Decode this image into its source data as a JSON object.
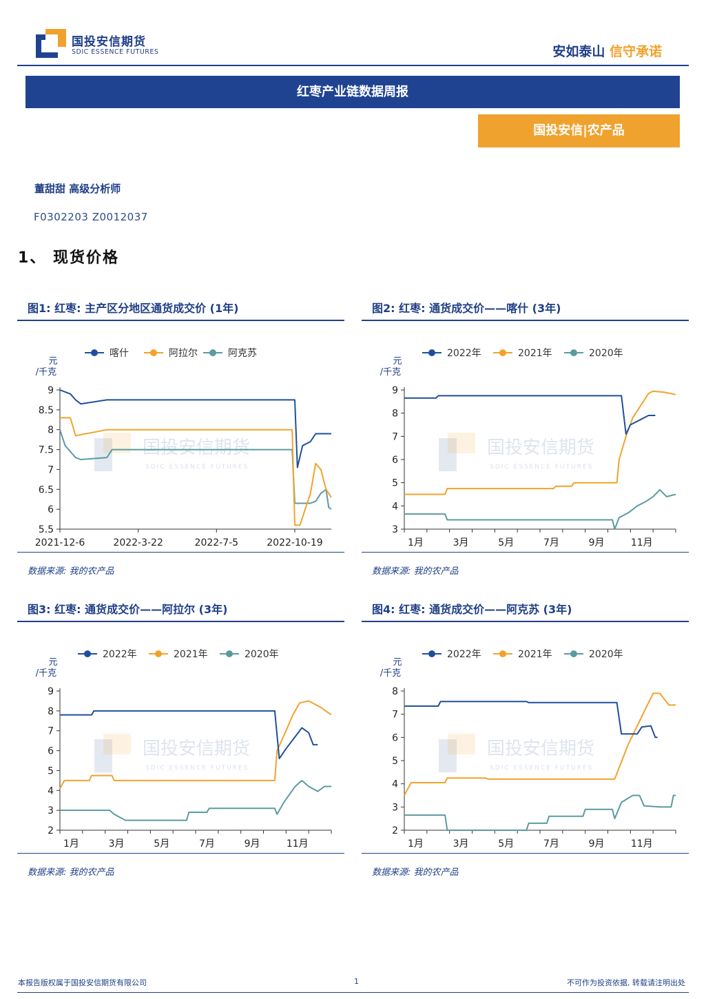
{
  "header": {
    "logo_cn": "国投安信期货",
    "logo_en": "SDIC ESSENCE FUTURES",
    "slogan_blue": "安如泰山",
    "slogan_orange": "信守承诺",
    "report_title": "红枣产业链数据周报",
    "category": "国投安信|农产品"
  },
  "analyst": {
    "name_title": "董甜甜  高级分析师",
    "codes": "F0302203  Z0012037"
  },
  "section": "1、 现货价格",
  "colors": {
    "brand_blue": "#1f3f86",
    "orange": "#f0a22e",
    "series_blue": "#1f4e9c",
    "series_orange": "#f2a22a",
    "series_teal": "#5a9aa0"
  },
  "watermark": {
    "cn": "国投安信期货",
    "en": "SDIC ESSENCE FUTURES"
  },
  "figures": [
    {
      "title": "图1: 红枣: 主产区分地区通货成交价 (1年)",
      "source": "数据来源: 我的农产品",
      "chart_data": {
        "type": "line",
        "ylabel": "元/千克",
        "ylim": [
          5.5,
          9
        ],
        "yticks": [
          "9",
          "8.5",
          "8",
          "7.5",
          "7",
          "6.5",
          "6",
          "5.5"
        ],
        "ytick_values": [
          9,
          8.5,
          8,
          7.5,
          7,
          6.5,
          6,
          5.5
        ],
        "xlim": [
          0,
          52
        ],
        "xticks": [
          {
            "x": 0,
            "label": "2021-12-6"
          },
          {
            "x": 15,
            "label": "2022-3-22"
          },
          {
            "x": 30,
            "label": "2022-7-5"
          },
          {
            "x": 45,
            "label": "2022-10-19"
          }
        ],
        "series": [
          {
            "name": "喀什",
            "color": "#1f4e9c",
            "points": [
              [
                0,
                9.0
              ],
              [
                2,
                8.9
              ],
              [
                3,
                8.75
              ],
              [
                4,
                8.65
              ],
              [
                9,
                8.75
              ],
              [
                45,
                8.75
              ],
              [
                45.5,
                7.05
              ],
              [
                46.5,
                7.6
              ],
              [
                48,
                7.7
              ],
              [
                49,
                7.9
              ],
              [
                52,
                7.9
              ]
            ]
          },
          {
            "name": "阿拉尔",
            "color": "#f2a22a",
            "points": [
              [
                0,
                8.3
              ],
              [
                2,
                8.3
              ],
              [
                3,
                7.85
              ],
              [
                9,
                8.0
              ],
              [
                44.5,
                8.0
              ],
              [
                45,
                5.6
              ],
              [
                46,
                5.6
              ],
              [
                47,
                6.0
              ],
              [
                48,
                6.4
              ],
              [
                49,
                7.15
              ],
              [
                50,
                7.0
              ],
              [
                51,
                6.5
              ],
              [
                52,
                6.3
              ]
            ]
          },
          {
            "name": "阿克苏",
            "color": "#5a9aa0",
            "points": [
              [
                0,
                8.0
              ],
              [
                1,
                7.6
              ],
              [
                3,
                7.3
              ],
              [
                4,
                7.25
              ],
              [
                9,
                7.3
              ],
              [
                10,
                7.5
              ],
              [
                44.5,
                7.5
              ],
              [
                45,
                6.15
              ],
              [
                48,
                6.15
              ],
              [
                49,
                6.2
              ],
              [
                50,
                6.4
              ],
              [
                51,
                6.5
              ],
              [
                51.5,
                6.05
              ],
              [
                52,
                6.0
              ]
            ]
          }
        ]
      }
    },
    {
      "title": "图2: 红枣: 通货成交价——喀什 (3年)",
      "source": "数据来源: 我的农产品",
      "chart_data": {
        "type": "line",
        "ylabel": "元/千克",
        "ylim": [
          3,
          9
        ],
        "yticks": [
          "9",
          "8",
          "7",
          "6",
          "5",
          "4",
          "3"
        ],
        "ytick_values": [
          9,
          8,
          7,
          6,
          5,
          4,
          3
        ],
        "xlim": [
          0,
          12
        ],
        "xticks": [
          {
            "x": 0.5,
            "label": "1月"
          },
          {
            "x": 2.5,
            "label": "3月"
          },
          {
            "x": 4.5,
            "label": "5月"
          },
          {
            "x": 6.5,
            "label": "7月"
          },
          {
            "x": 8.5,
            "label": "9月"
          },
          {
            "x": 10.5,
            "label": "11月"
          }
        ],
        "series": [
          {
            "name": "2022年",
            "color": "#1f4e9c",
            "points": [
              [
                0,
                8.65
              ],
              [
                1.4,
                8.65
              ],
              [
                1.5,
                8.75
              ],
              [
                9.6,
                8.75
              ],
              [
                9.8,
                7.1
              ],
              [
                10.0,
                7.5
              ],
              [
                10.4,
                7.7
              ],
              [
                10.8,
                7.9
              ],
              [
                11.1,
                7.9
              ]
            ]
          },
          {
            "name": "2021年",
            "color": "#f2a22a",
            "points": [
              [
                0,
                4.5
              ],
              [
                1.8,
                4.5
              ],
              [
                1.9,
                4.75
              ],
              [
                6.6,
                4.75
              ],
              [
                6.7,
                4.85
              ],
              [
                7.4,
                4.85
              ],
              [
                7.5,
                5.0
              ],
              [
                9.4,
                5.0
              ],
              [
                9.5,
                6.0
              ],
              [
                9.8,
                7.0
              ],
              [
                10.1,
                7.8
              ],
              [
                10.5,
                8.4
              ],
              [
                10.8,
                8.85
              ],
              [
                11.0,
                8.95
              ],
              [
                11.5,
                8.9
              ],
              [
                12,
                8.8
              ]
            ]
          },
          {
            "name": "2020年",
            "color": "#5a9aa0",
            "points": [
              [
                0,
                3.65
              ],
              [
                1.8,
                3.65
              ],
              [
                1.9,
                3.4
              ],
              [
                9.2,
                3.4
              ],
              [
                9.3,
                3.0
              ],
              [
                9.5,
                3.5
              ],
              [
                9.9,
                3.7
              ],
              [
                10.3,
                4.0
              ],
              [
                10.7,
                4.2
              ],
              [
                11.0,
                4.4
              ],
              [
                11.3,
                4.7
              ],
              [
                11.6,
                4.4
              ],
              [
                12,
                4.5
              ]
            ]
          }
        ]
      }
    },
    {
      "title": "图3: 红枣: 通货成交价——阿拉尔 (3年)",
      "source": "数据来源: 我的农产品",
      "chart_data": {
        "type": "line",
        "ylabel": "元/千克",
        "ylim": [
          2,
          9
        ],
        "yticks": [
          "9",
          "8",
          "7",
          "6",
          "5",
          "4",
          "3",
          "2"
        ],
        "ytick_values": [
          9,
          8,
          7,
          6,
          5,
          4,
          3,
          2
        ],
        "xlim": [
          0,
          12
        ],
        "xticks": [
          {
            "x": 0.5,
            "label": "1月"
          },
          {
            "x": 2.5,
            "label": "3月"
          },
          {
            "x": 4.5,
            "label": "5月"
          },
          {
            "x": 6.5,
            "label": "7月"
          },
          {
            "x": 8.5,
            "label": "9月"
          },
          {
            "x": 10.5,
            "label": "11月"
          }
        ],
        "series": [
          {
            "name": "2022年",
            "color": "#1f4e9c",
            "points": [
              [
                0,
                7.8
              ],
              [
                1.4,
                7.8
              ],
              [
                1.5,
                8.0
              ],
              [
                9.5,
                8.0
              ],
              [
                9.7,
                5.6
              ],
              [
                10.0,
                6.1
              ],
              [
                10.4,
                6.7
              ],
              [
                10.7,
                7.15
              ],
              [
                11.0,
                6.9
              ],
              [
                11.2,
                6.3
              ],
              [
                11.4,
                6.3
              ]
            ]
          },
          {
            "name": "2021年",
            "color": "#f2a22a",
            "points": [
              [
                0,
                4.1
              ],
              [
                0.2,
                4.5
              ],
              [
                1.3,
                4.5
              ],
              [
                1.4,
                4.75
              ],
              [
                2.3,
                4.75
              ],
              [
                2.4,
                4.5
              ],
              [
                9.5,
                4.5
              ],
              [
                9.6,
                6.0
              ],
              [
                10.0,
                7.0
              ],
              [
                10.3,
                7.8
              ],
              [
                10.6,
                8.4
              ],
              [
                11.0,
                8.5
              ],
              [
                11.5,
                8.2
              ],
              [
                12,
                7.8
              ]
            ]
          },
          {
            "name": "2020年",
            "color": "#5a9aa0",
            "points": [
              [
                0,
                3.0
              ],
              [
                2.2,
                3.0
              ],
              [
                2.4,
                2.8
              ],
              [
                2.9,
                2.5
              ],
              [
                5.6,
                2.5
              ],
              [
                5.7,
                2.9
              ],
              [
                6.5,
                2.9
              ],
              [
                6.6,
                3.1
              ],
              [
                9.5,
                3.1
              ],
              [
                9.6,
                2.8
              ],
              [
                9.9,
                3.4
              ],
              [
                10.4,
                4.2
              ],
              [
                10.7,
                4.5
              ],
              [
                11.0,
                4.2
              ],
              [
                11.4,
                3.95
              ],
              [
                11.7,
                4.2
              ],
              [
                12,
                4.2
              ]
            ]
          }
        ]
      }
    },
    {
      "title": "图4: 红枣: 通货成交价——阿克苏 (3年)",
      "source": "数据来源: 我的农产品",
      "chart_data": {
        "type": "line",
        "ylabel": "元/千克",
        "ylim": [
          2,
          8
        ],
        "yticks": [
          "8",
          "7",
          "6",
          "5",
          "4",
          "3",
          "2"
        ],
        "ytick_values": [
          8,
          7,
          6,
          5,
          4,
          3,
          2
        ],
        "xlim": [
          0,
          12
        ],
        "xticks": [
          {
            "x": 0.5,
            "label": "1月"
          },
          {
            "x": 2.5,
            "label": "3月"
          },
          {
            "x": 4.5,
            "label": "5月"
          },
          {
            "x": 6.5,
            "label": "7月"
          },
          {
            "x": 8.5,
            "label": "9月"
          },
          {
            "x": 10.5,
            "label": "11月"
          }
        ],
        "series": [
          {
            "name": "2022年",
            "color": "#1f4e9c",
            "points": [
              [
                0,
                7.35
              ],
              [
                1.5,
                7.35
              ],
              [
                1.6,
                7.55
              ],
              [
                5.4,
                7.55
              ],
              [
                5.5,
                7.5
              ],
              [
                9.4,
                7.5
              ],
              [
                9.6,
                6.15
              ],
              [
                10.3,
                6.15
              ],
              [
                10.5,
                6.45
              ],
              [
                10.9,
                6.5
              ],
              [
                11.1,
                6.0
              ],
              [
                11.2,
                6.0
              ]
            ]
          },
          {
            "name": "2021年",
            "color": "#f2a22a",
            "points": [
              [
                0,
                3.5
              ],
              [
                0.3,
                4.05
              ],
              [
                1.8,
                4.05
              ],
              [
                1.9,
                4.25
              ],
              [
                3.6,
                4.25
              ],
              [
                3.7,
                4.2
              ],
              [
                9.3,
                4.2
              ],
              [
                9.5,
                4.7
              ],
              [
                9.9,
                5.7
              ],
              [
                10.3,
                6.5
              ],
              [
                10.7,
                7.3
              ],
              [
                11.0,
                7.9
              ],
              [
                11.3,
                7.9
              ],
              [
                11.7,
                7.4
              ],
              [
                12,
                7.4
              ]
            ]
          },
          {
            "name": "2020年",
            "color": "#5a9aa0",
            "points": [
              [
                0,
                2.65
              ],
              [
                1.8,
                2.65
              ],
              [
                1.9,
                2.0
              ],
              [
                5.4,
                2.0
              ],
              [
                5.5,
                2.3
              ],
              [
                6.3,
                2.3
              ],
              [
                6.4,
                2.6
              ],
              [
                7.9,
                2.6
              ],
              [
                8.0,
                2.9
              ],
              [
                9.2,
                2.9
              ],
              [
                9.3,
                2.5
              ],
              [
                9.6,
                3.2
              ],
              [
                10.1,
                3.5
              ],
              [
                10.4,
                3.5
              ],
              [
                10.6,
                3.05
              ],
              [
                11.3,
                3.0
              ],
              [
                11.8,
                3.0
              ],
              [
                11.9,
                3.5
              ],
              [
                12,
                3.5
              ]
            ]
          }
        ]
      }
    }
  ],
  "footer": {
    "left": "本报告版权属于国投安信期货有限公司",
    "page": "1",
    "right": "不可作为投资依据, 转载请注明出处"
  }
}
